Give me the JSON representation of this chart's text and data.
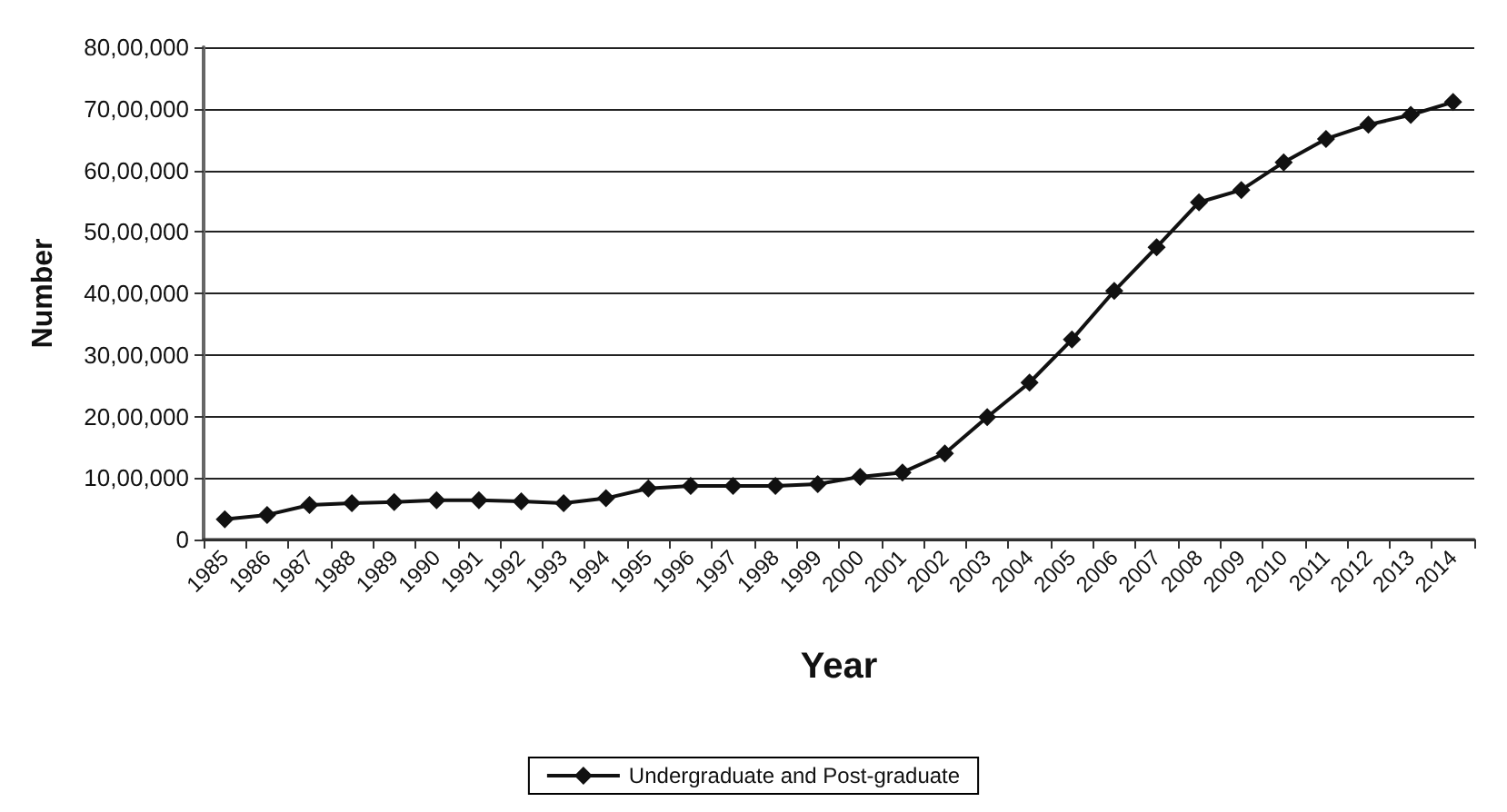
{
  "chart_data": {
    "type": "line",
    "xlabel": "Year",
    "ylabel": "Number",
    "categories": [
      "1985",
      "1986",
      "1987",
      "1988",
      "1989",
      "1990",
      "1991",
      "1992",
      "1993",
      "1994",
      "1995",
      "1996",
      "1997",
      "1998",
      "1999",
      "2000",
      "2001",
      "2002",
      "2003",
      "2004",
      "2005",
      "2006",
      "2007",
      "2008",
      "2009",
      "2010",
      "2011",
      "2012",
      "2013",
      "2014"
    ],
    "series": [
      {
        "name": "Undergraduate and Post-graduate",
        "color": "#111111",
        "values": [
          330000,
          400000,
          560000,
          590000,
          610000,
          640000,
          640000,
          620000,
          590000,
          670000,
          830000,
          870000,
          870000,
          870000,
          900000,
          1020000,
          1090000,
          1400000,
          1990000,
          2550000,
          3250000,
          4040000,
          4750000,
          5480000,
          5680000,
          6130000,
          6510000,
          6740000,
          6900000,
          7110000
        ]
      }
    ],
    "ylim": [
      0,
      8000000
    ],
    "yticks": [
      {
        "value": 0,
        "label": "0"
      },
      {
        "value": 1000000,
        "label": "10,00,000"
      },
      {
        "value": 2000000,
        "label": "20,00,000"
      },
      {
        "value": 3000000,
        "label": "30,00,000"
      },
      {
        "value": 4000000,
        "label": "40,00,000"
      },
      {
        "value": 5000000,
        "label": "50,00,000"
      },
      {
        "value": 6000000,
        "label": "60,00,000"
      },
      {
        "value": 7000000,
        "label": "70,00,000"
      },
      {
        "value": 8000000,
        "label": "80,00,000"
      }
    ],
    "grid": "y",
    "legend": "bottom",
    "marker": "diamond",
    "line_style": "solid"
  }
}
